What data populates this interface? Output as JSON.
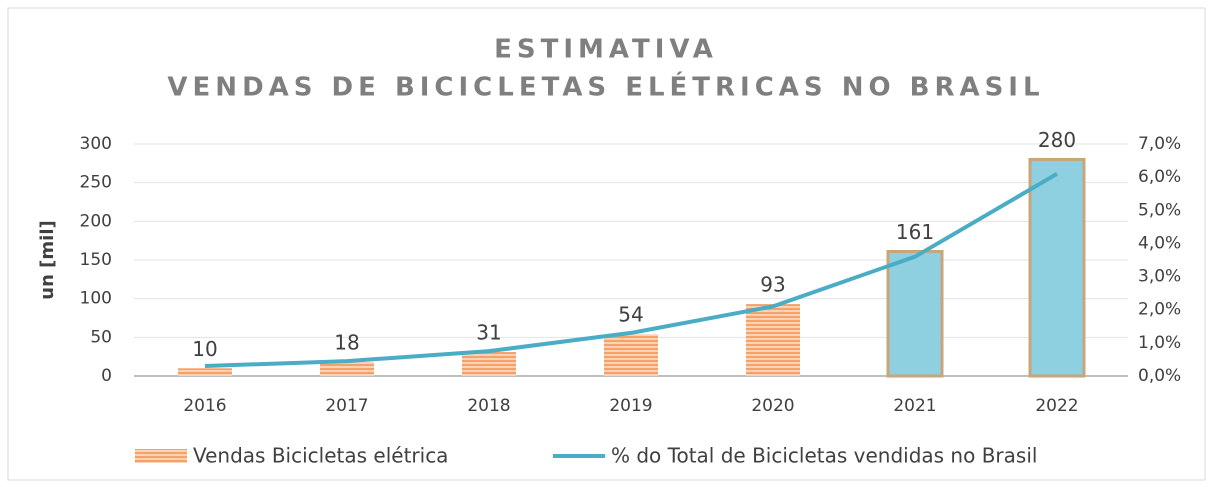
{
  "chart_data": {
    "type": "bar_line",
    "title": "ESTIMATIVA",
    "subtitle": "VENDAS DE BICICLETAS ELÉTRICAS NO BRASIL",
    "ylabel": "un [mil]",
    "categories": [
      "2016",
      "2017",
      "2018",
      "2019",
      "2020",
      "2021",
      "2022"
    ],
    "series": [
      {
        "name": "Vendas Bicicletas elétrica",
        "type": "bar",
        "color": "#f5a26a",
        "values": [
          10,
          18,
          31,
          54,
          93,
          161,
          280
        ],
        "point_colors": [
          "#f5a26a",
          "#f5a26a",
          "#f5a26a",
          "#f5a26a",
          "#f5a26a",
          "#8ecfe0",
          "#8ecfe0"
        ]
      },
      {
        "name": "% do Total de Bicicletas vendidas no Brasil",
        "type": "line",
        "color": "#4bacc6",
        "axis": "y2",
        "values": [
          0.3,
          0.45,
          0.75,
          1.3,
          2.1,
          3.6,
          6.1
        ]
      }
    ],
    "ylim": [
      0,
      300
    ],
    "yticks": [
      0,
      50,
      100,
      150,
      200,
      250,
      300
    ],
    "y2lim": [
      0,
      7
    ],
    "y2ticks": [
      {
        "value": 0,
        "label": "0,0%"
      },
      {
        "value": 1,
        "label": "1,0%"
      },
      {
        "value": 2,
        "label": "2,0%"
      },
      {
        "value": 3,
        "label": "3,0%"
      },
      {
        "value": 4,
        "label": "4,0%"
      },
      {
        "value": 5,
        "label": "5,0%"
      },
      {
        "value": 6,
        "label": "6,0%"
      },
      {
        "value": 7,
        "label": "7,0%"
      }
    ],
    "grid": true,
    "legend": "bottom"
  }
}
